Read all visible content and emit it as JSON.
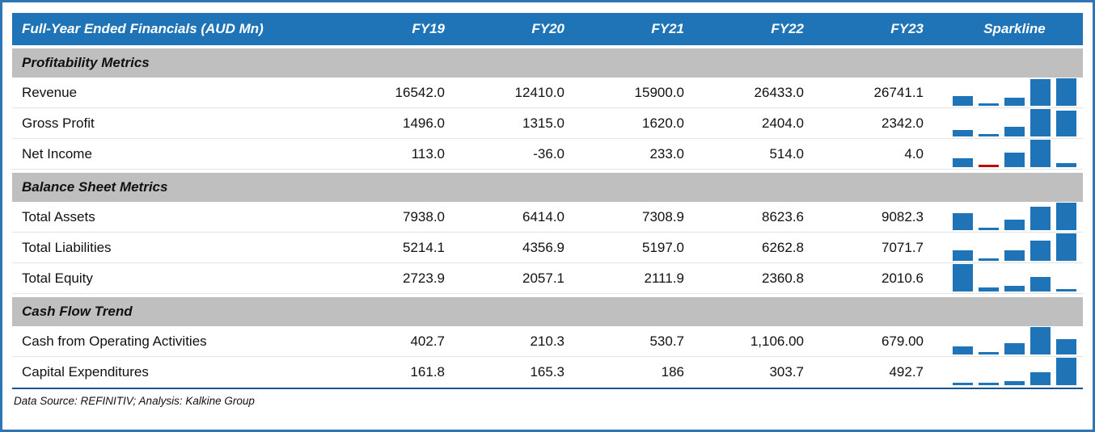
{
  "header": {
    "title": "Full-Year Ended Financials (AUD Mn)",
    "columns": [
      "FY19",
      "FY20",
      "FY21",
      "FY22",
      "FY23"
    ],
    "sparkline_label": "Sparkline"
  },
  "sections": [
    {
      "title": "Profitability Metrics",
      "rows": [
        {
          "label": "Revenue",
          "values": [
            "16542.0",
            "12410.0",
            "15900.0",
            "26433.0",
            "26741.1"
          ]
        },
        {
          "label": "Gross Profit",
          "values": [
            "1496.0",
            "1315.0",
            "1620.0",
            "2404.0",
            "2342.0"
          ]
        },
        {
          "label": "Net Income",
          "values": [
            "113.0",
            "-36.0",
            "233.0",
            "514.0",
            "4.0"
          ]
        }
      ]
    },
    {
      "title": "Balance Sheet Metrics",
      "rows": [
        {
          "label": "Total Assets",
          "values": [
            "7938.0",
            "6414.0",
            "7308.9",
            "8623.6",
            "9082.3"
          ]
        },
        {
          "label": "Total Liabilities",
          "values": [
            "5214.1",
            "4356.9",
            "5197.0",
            "6262.8",
            "7071.7"
          ]
        },
        {
          "label": "Total Equity",
          "values": [
            "2723.9",
            "2057.1",
            "2111.9",
            "2360.8",
            "2010.6"
          ]
        }
      ]
    },
    {
      "title": "Cash Flow Trend",
      "rows": [
        {
          "label": "Cash from Operating Activities",
          "values": [
            "402.7",
            "210.3",
            "530.7",
            "1,106.00",
            "679.00"
          ]
        },
        {
          "label": "Capital Expenditures",
          "values": [
            "161.8",
            "165.3",
            "186",
            "303.7",
            "492.7"
          ]
        }
      ]
    }
  ],
  "footer": {
    "source": "Data Source: REFINITIV; Analysis: Kalkine Group"
  },
  "colors": {
    "header_bg": "#1F74B8",
    "section_bg": "#BFBFBF",
    "border": "#2E75B6",
    "spark_positive": "#1F74B8",
    "spark_negative": "#C00000"
  },
  "chart_data": {
    "type": "table",
    "title": "Full-Year Ended Financials (AUD Mn)",
    "categories": [
      "FY19",
      "FY20",
      "FY21",
      "FY22",
      "FY23"
    ],
    "sections": [
      {
        "name": "Profitability Metrics",
        "series": [
          {
            "name": "Revenue",
            "values": [
              16542.0,
              12410.0,
              15900.0,
              26433.0,
              26741.1
            ]
          },
          {
            "name": "Gross Profit",
            "values": [
              1496.0,
              1315.0,
              1620.0,
              2404.0,
              2342.0
            ]
          },
          {
            "name": "Net Income",
            "values": [
              113.0,
              -36.0,
              233.0,
              514.0,
              4.0
            ]
          }
        ]
      },
      {
        "name": "Balance Sheet Metrics",
        "series": [
          {
            "name": "Total Assets",
            "values": [
              7938.0,
              6414.0,
              7308.9,
              8623.6,
              9082.3
            ]
          },
          {
            "name": "Total Liabilities",
            "values": [
              5214.1,
              4356.9,
              5197.0,
              6262.8,
              7071.7
            ]
          },
          {
            "name": "Total Equity",
            "values": [
              2723.9,
              2057.1,
              2111.9,
              2360.8,
              2010.6
            ]
          }
        ]
      },
      {
        "name": "Cash Flow Trend",
        "series": [
          {
            "name": "Cash from Operating Activities",
            "values": [
              402.7,
              210.3,
              530.7,
              1106.0,
              679.0
            ]
          },
          {
            "name": "Capital Expenditures",
            "values": [
              161.8,
              165.3,
              186,
              303.7,
              492.7
            ]
          }
        ]
      }
    ],
    "legend": "none",
    "notes": "Each row has a 5-column sparkline (FY19-FY23), min-max scaled; negative values drawn red"
  }
}
